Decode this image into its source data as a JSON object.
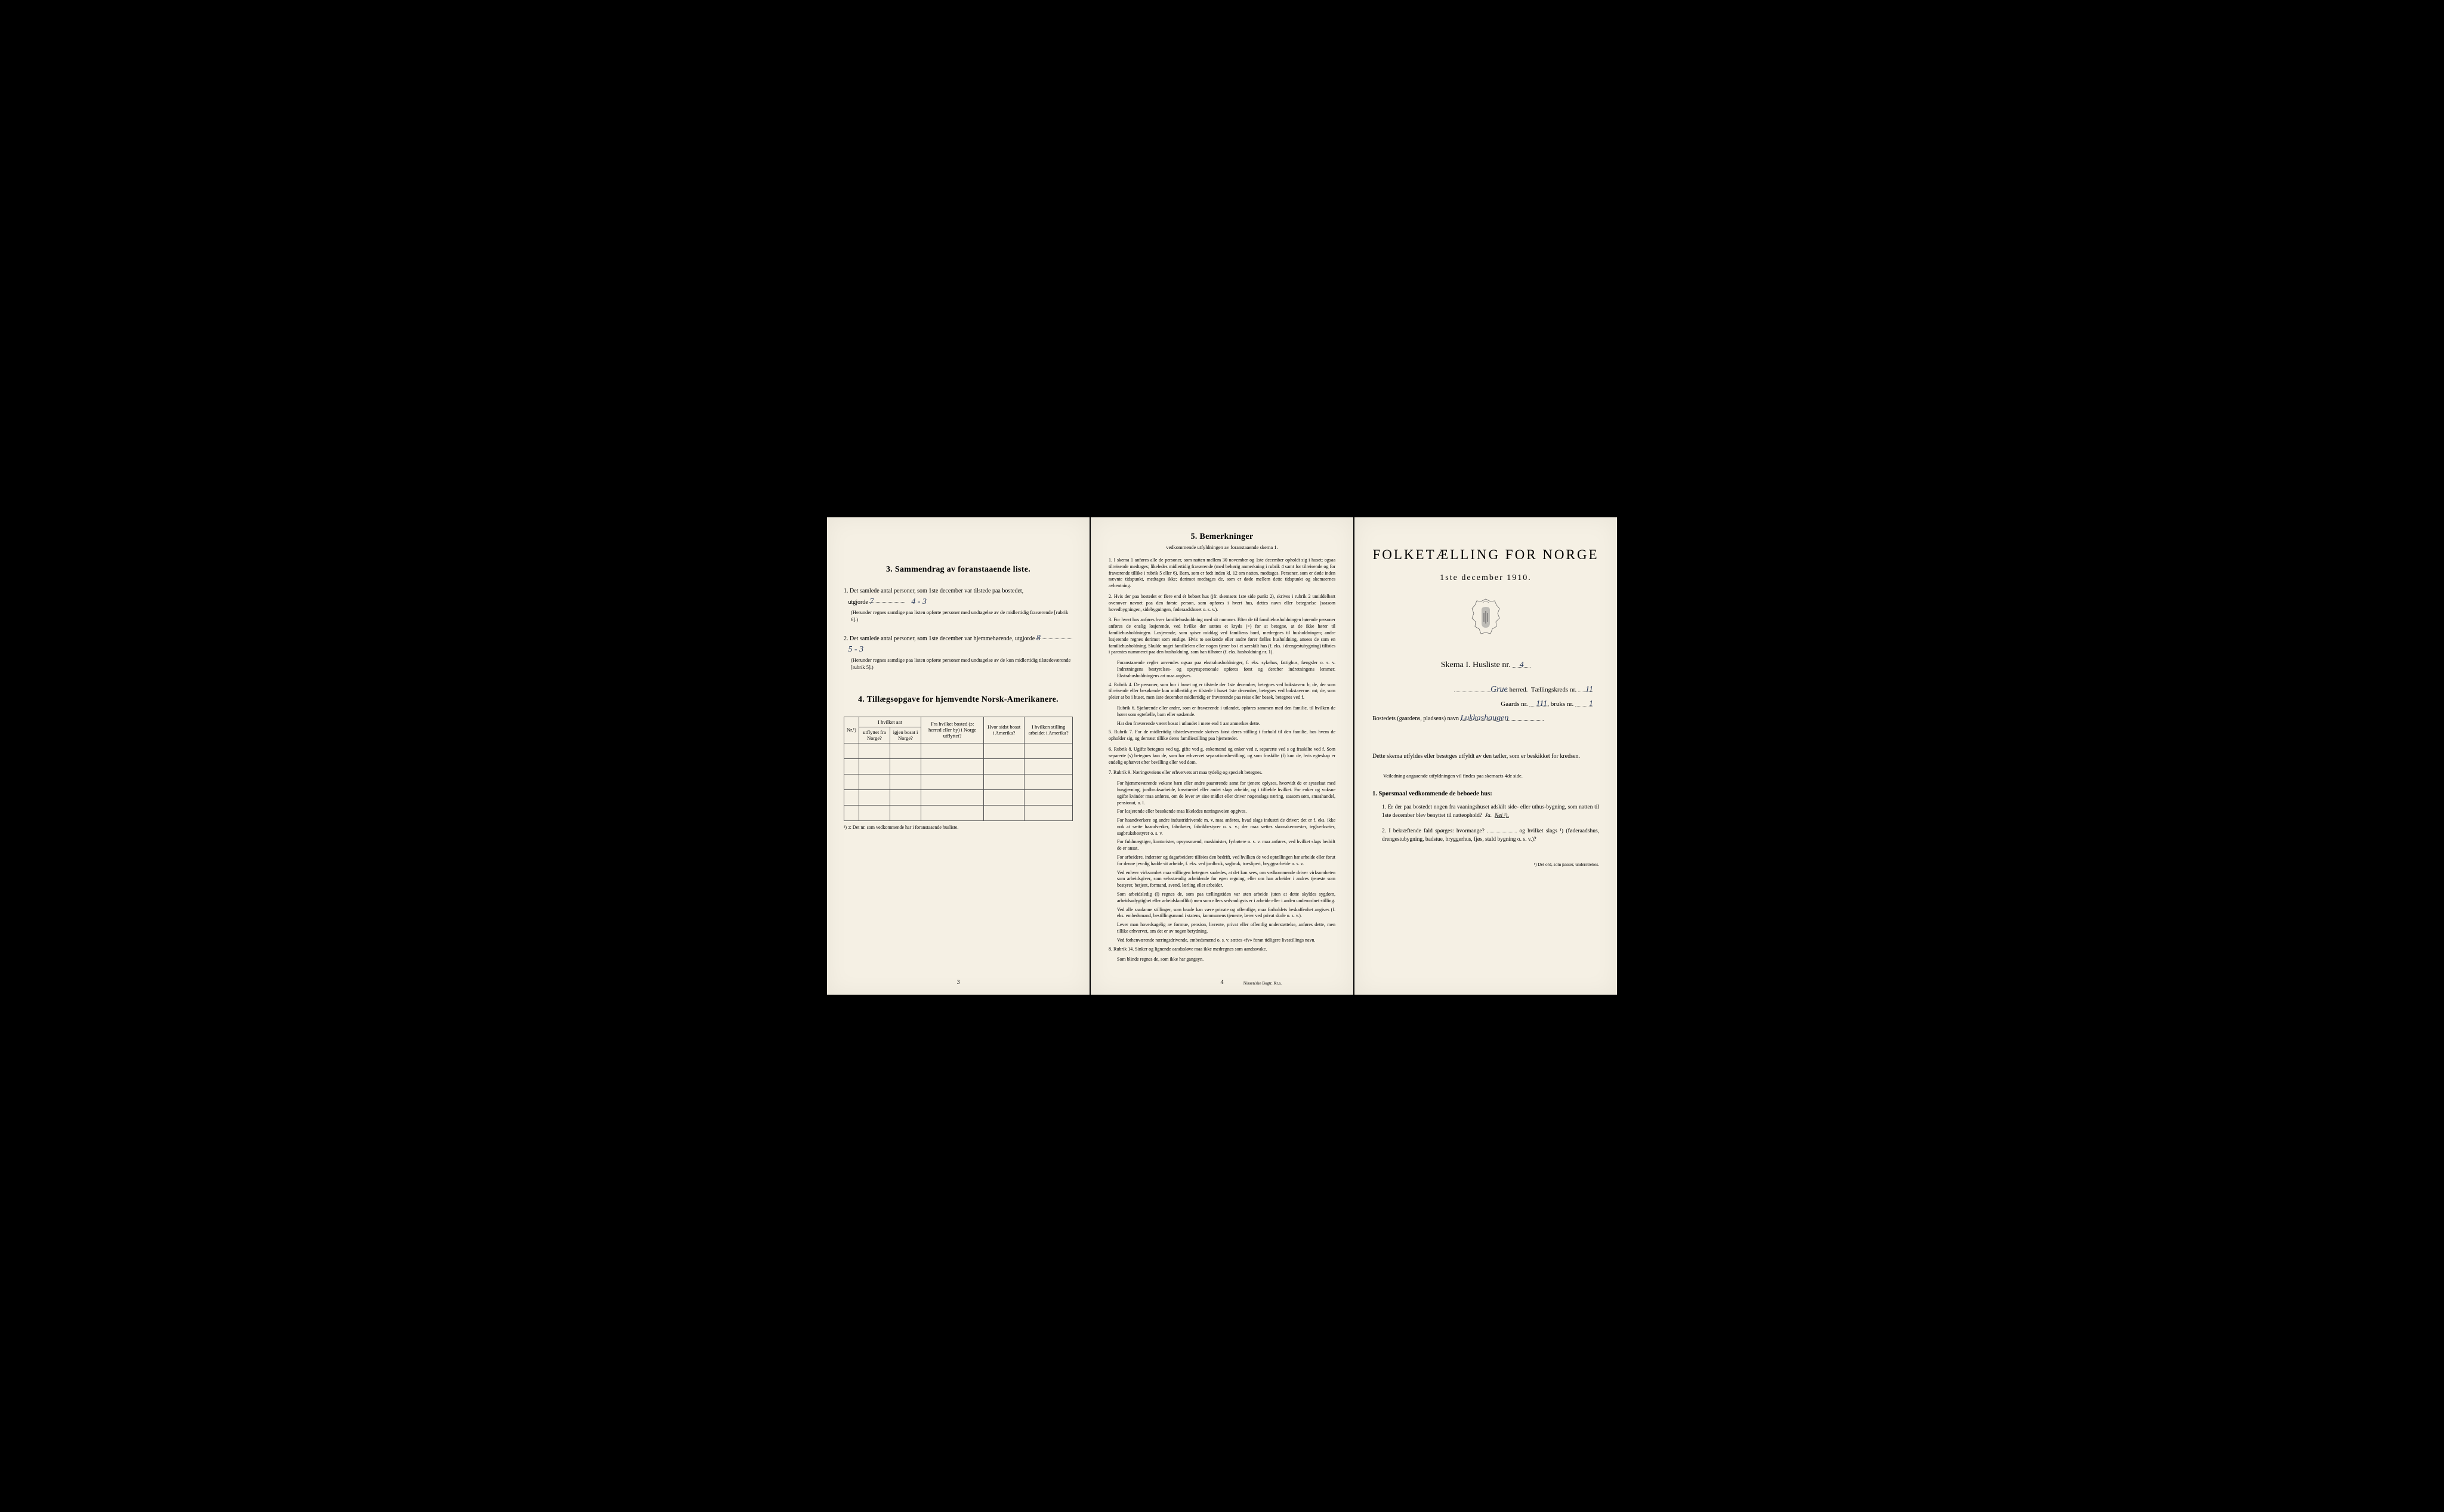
{
  "page3": {
    "section3_title": "3.  Sammendrag av foranstaaende liste.",
    "item1_text": "Det samlede antal personer, som 1ste december var tilstede paa bostedet,",
    "item1_prefix": "1.",
    "utgjorde_label": "utgjorde",
    "item1_value": "7",
    "item1_value2": "4 - 3",
    "item1_note": "(Herunder regnes samtlige paa listen opførte personer med undtagelse av de midlertidig fraværende [rubrik 6].)",
    "item2_prefix": "2.",
    "item2_text": "Det samlede antal personer, som 1ste december var hjemmehørende, utgjorde",
    "item2_value": "8",
    "item2_value2": "5 - 3",
    "item2_note": "(Herunder regnes samtlige paa listen opførte personer med undtagelse av de kun midlertidig tilstedeværende [rubrik 5].)",
    "section4_title": "4.  Tillægsopgave for hjemvendte Norsk-Amerikanere.",
    "table": {
      "header_group": "I hvilket aar",
      "col_nr": "Nr.¹)",
      "col_utflyttet": "utflyttet fra Norge?",
      "col_igjen": "igjen bosat i Norge?",
      "col_fra": "Fra hvilket bosted (ɔ: herred eller by) i Norge utflyttet?",
      "col_hvor": "Hvor sidst bosat i Amerika?",
      "col_stilling": "I hvilken stilling arbeidet i Amerika?"
    },
    "footnote": "¹) ɔ: Det nr. som vedkommende har i foranstaaende husliste.",
    "page_num": "3"
  },
  "page4": {
    "title": "5.  Bemerkninger",
    "subtitle": "vedkommende utfyldningen av foranstaaende skema 1.",
    "items": [
      {
        "num": "1.",
        "text": "I skema 1 anføres alle de personer, som natten mellem 30 november og 1ste december opholdt sig i huset; ogsaa tilreisende medtages; likeledes midlertidig fraværende (med behørig anmerkning i rubrik 4 samt for tilreisende og for fraværende tillike i rubrik 5 eller 6). Barn, som er født inden kl. 12 om natten, medtages. Personer, som er døde inden nævnte tidspunkt, medtages ikke; derimot medtages de, som er døde mellem dette tidspunkt og skemaernes avhentning."
      },
      {
        "num": "2.",
        "text": "Hvis der paa bostedet er flere end ét beboet hus (jfr. skemaets 1ste side punkt 2), skrives i rubrik 2 umiddelbart ovenover navnet paa den første person, som opføres i hvert hus, dettes navn eller betegnelse (saasom hovedbygningen, sidebygningen, føderaadshuset o. s. v.)."
      },
      {
        "num": "3.",
        "text": "For hvert hus anføres hver familiehusholdning med sit nummer. Efter de til familiehusholdningen hørende personer anføres de enslig losjerende, ved hvilke der sættes et kryds (×) for at betegne, at de ikke hører til familiehusholdningen. Losjerende, som spiser middag ved familiens bord, medregnes til husholdningen; andre losjerende regnes derimot som enslige. Hvis to søskende eller andre fører fælles husholdning, ansees de som en familiehusholdning. Skulde noget familielem eller nogen tjener bo i et særskilt hus (f. eks. i drengestubygning) tilføies i parentes nummeret paa den husholdning, som han tilhører (f. eks. husholdning nr. 1).",
        "sub": [
          "Foranstaaende regler anvendes ogsaa paa ekstrahusholdninger, f. eks. sykehus, fattighus, fængsler o. s. v. Indretningens bestyrelses- og opsynspersonale opføres først og derefter indretningens lemmer. Ekstrahusholdningens art maa angives."
        ]
      },
      {
        "num": "4.",
        "text": "Rubrik 4. De personer, som bor i huset og er tilstede der 1ste december, betegnes ved bokstaven: b; de, der som tilreisende eller besøkende kun midlertidig er tilstede i huset 1ste december, betegnes ved bokstaverne: mt; de, som pleier at bo i huset, men 1ste december midlertidig er fraværende paa reise eller besøk, betegnes ved f.",
        "sub": [
          "Rubrik 6. Sjøfarende eller andre, som er fraværende i utlandet, opføres sammen med den familie, til hvilken de hører som egtefælle, barn eller søskende.",
          "Har den fraværende været bosat i utlandet i mere end 1 aar anmerkes dette."
        ]
      },
      {
        "num": "5.",
        "text": "Rubrik 7. For de midlertidig tilstedeværende skrives først deres stilling i forhold til den familie, hos hvem de opholder sig, og dernæst tillike deres familiestilling paa hjemstedet."
      },
      {
        "num": "6.",
        "text": "Rubrik 8. Ugifte betegnes ved ug, gifte ved g, enkemænd og enker ved e, separerte ved s og fraskilte ved f. Som separerte (s) betegnes kun de, som har erhvervet separationsbevilling, og som fraskilte (f) kun de, hvis egteskap er endelig ophævet efter bevilling eller ved dom."
      },
      {
        "num": "7.",
        "text": "Rubrik 9. Næringsveiens eller erhvervets art maa tydelig og specielt betegnes.",
        "sub": [
          "For hjemmeværende voksne barn eller andre paarørende samt for tjenere oplyses, hvorvidt de er sysselsat med husgjerning, jordbruksarbeide, kreaturstel eller andet slags arbeide, og i tilfælde hvilket. For enker og voksne ugifte kvinder maa anføres, om de lever av sine midler eller driver nogenslags næring, saasom søm, smaahandel, pensionat, o. l.",
          "For losjerende eller besøkende maa likeledes næringsveien opgives.",
          "For haandverkere og andre industridrivende m. v. maa anføres, hvad slags industri de driver; det er f. eks. ikke nok at sætte haandverker, fabrikeier, fabrikbestyrer o. s. v.; der maa sættes skomakermester, teglverkseier, sagbruksbestyrer o. s. v.",
          "For fuldmægtiger, kontorister, opsynsmænd, maskinister, fyrbøtere o. s. v. maa anføres, ved hvilket slags bedrift de er ansat.",
          "For arbeidere, inderster og dagarbeidere tilføies den bedrift, ved hvilken de ved optællingen har arbeide eller forut for denne jevnlig hadde sit arbeide, f. eks. ved jordbruk, sagbruk, træsliperi, bryggearbeide o. s. v.",
          "Ved enhver virksomhet maa stillingen betegnes saaledes, at det kan sees, om vedkommende driver virksomheten som arbeidsgiver, som selvstændig arbeidende for egen regning, eller om han arbeider i andres tjeneste som bestyrer, betjent, formand, svend, lærling eller arbeider.",
          "Som arbeidsledig (l) regnes de, som paa tællingstiden var uten arbeide (uten at dette skyldes sygdom, arbeidsudygtighet eller arbeidskonflikt) men som ellers sedvanligvis er i arbeide eller i anden underordnet stilling.",
          "Ved alle saadanne stillinger, som baade kan være private og offentlige, maa forholdets beskaffenhet angives (f. eks. embedsmand, bestillingsmand i statens, kommunens tjeneste, lærer ved privat skole o. s. v.).",
          "Lever man hovedsagelig av formue, pension, livrente, privat eller offentlig understøttelse, anføres dette, men tillike erhvervet, om det er av nogen betydning.",
          "Ved forhenværende næringsdrivende, embedsmænd o. s. v. sættes «fv» foran tidligere livsstillings navn."
        ]
      },
      {
        "num": "8.",
        "text": "Rubrik 14. Sinker og lignende aandssløve maa ikke medregnes som aandssvake.",
        "sub": [
          "Som blinde regnes de, som ikke har gangsyn."
        ]
      }
    ],
    "page_num": "4",
    "printer": "Nissen'ske Bogtr. Kr.a."
  },
  "page1": {
    "main_title": "FOLKETÆLLING FOR NORGE",
    "date": "1ste december 1910.",
    "skema_label": "Skema I.  Husliste nr.",
    "skema_value": "4",
    "herred_value": "Grue",
    "herred_label": "herred.",
    "krets_label": "Tællingskreds nr.",
    "krets_value": "11",
    "gaards_label": "Gaards nr.",
    "gaards_value": "111",
    "bruks_label": "bruks nr.",
    "bruks_value": "1",
    "bosted_label": "Bostedets (gaardens, pladsens) navn",
    "bosted_value": "Lukkashaugen",
    "instruction": "Dette skema utfyldes eller besørges utfyldt av den tæller, som er beskikket for kredsen.",
    "instruction_sub": "Veiledning angaaende utfyldningen vil findes paa skemaets 4de side.",
    "q_heading": "1. Spørsmaal vedkommende de beboede hus:",
    "q1_num": "1.",
    "q1_text": "Er der paa bostedet nogen fra vaaningshuset adskilt side- eller uthus-bygning, som natten til 1ste december blev benyttet til natteophold?",
    "q1_ja": "Ja.",
    "q1_nei": "Nei ¹).",
    "q2_num": "2.",
    "q2_text": "I bekræftende fald spørges: hvormange?",
    "q2_text2": "og hvilket slags ¹) (føderaadshus, drengestubygning, badstue, bryggerhus, fjøs, stald bygning o. s. v.)?",
    "footnote": "¹) Det ord, som passer, understrekes."
  }
}
